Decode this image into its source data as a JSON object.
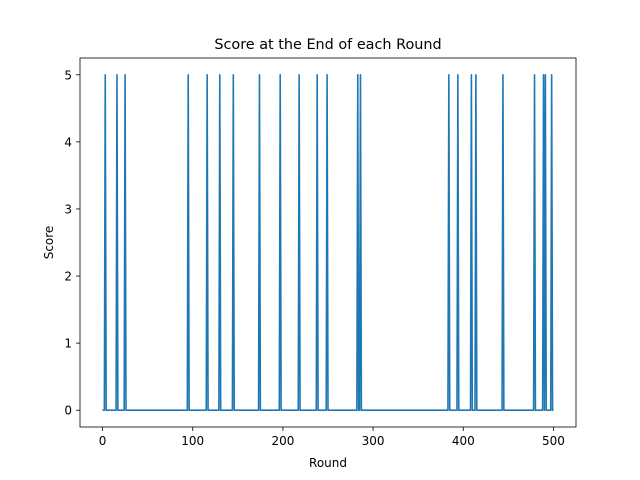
{
  "chart_data": {
    "type": "line",
    "title": "Score at the End of each Round",
    "xlabel": "Round",
    "ylabel": "Score",
    "xlim": [
      -25,
      525
    ],
    "ylim": [
      -0.25,
      5.25
    ],
    "x_ticks": [
      0,
      100,
      200,
      300,
      400,
      500
    ],
    "y_ticks": [
      0,
      1,
      2,
      3,
      4,
      5
    ],
    "grid": false,
    "color": "#1f77b4",
    "series": [
      {
        "x_range": [
          0,
          500
        ],
        "baseline": 0,
        "spike_value": 5,
        "spike_rounds": [
          3,
          16,
          25,
          95,
          116,
          130,
          145,
          174,
          197,
          218,
          238,
          249,
          283,
          286,
          384,
          394,
          409,
          414,
          444,
          479,
          489,
          491,
          498
        ]
      }
    ]
  }
}
